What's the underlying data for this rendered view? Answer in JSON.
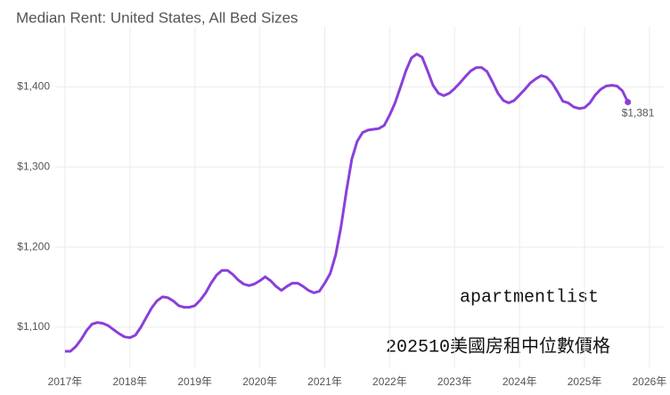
{
  "chart_data": {
    "type": "line",
    "title": "Median Rent: United States, All Bed Sizes",
    "x": [
      2017,
      2017.083,
      2017.167,
      2017.25,
      2017.333,
      2017.417,
      2017.5,
      2017.583,
      2017.667,
      2017.75,
      2017.833,
      2017.917,
      2018,
      2018.083,
      2018.167,
      2018.25,
      2018.333,
      2018.417,
      2018.5,
      2018.583,
      2018.667,
      2018.75,
      2018.833,
      2018.917,
      2019,
      2019.083,
      2019.167,
      2019.25,
      2019.333,
      2019.417,
      2019.5,
      2019.583,
      2019.667,
      2019.75,
      2019.833,
      2019.917,
      2020,
      2020.083,
      2020.167,
      2020.25,
      2020.333,
      2020.417,
      2020.5,
      2020.583,
      2020.667,
      2020.75,
      2020.833,
      2020.917,
      2021,
      2021.083,
      2021.167,
      2021.25,
      2021.333,
      2021.417,
      2021.5,
      2021.583,
      2021.667,
      2021.75,
      2021.833,
      2021.917,
      2022,
      2022.083,
      2022.167,
      2022.25,
      2022.333,
      2022.417,
      2022.5,
      2022.583,
      2022.667,
      2022.75,
      2022.833,
      2022.917,
      2023,
      2023.083,
      2023.167,
      2023.25,
      2023.333,
      2023.417,
      2023.5,
      2023.583,
      2023.667,
      2023.75,
      2023.833,
      2023.917,
      2024,
      2024.083,
      2024.167,
      2024.25,
      2024.333,
      2024.417,
      2024.5,
      2024.583,
      2024.667,
      2024.75,
      2024.833,
      2024.917,
      2025,
      2025.083,
      2025.167,
      2025.25,
      2025.333,
      2025.417,
      2025.5,
      2025.583,
      2025.667
    ],
    "values": [
      1070,
      1070,
      1076,
      1085,
      1096,
      1104,
      1106,
      1105,
      1102,
      1097,
      1092,
      1088,
      1087,
      1090,
      1100,
      1112,
      1124,
      1133,
      1138,
      1137,
      1133,
      1127,
      1125,
      1125,
      1127,
      1134,
      1143,
      1155,
      1165,
      1171,
      1171,
      1166,
      1159,
      1154,
      1152,
      1154,
      1158,
      1163,
      1158,
      1151,
      1146,
      1151,
      1155,
      1155,
      1151,
      1146,
      1143,
      1145,
      1155,
      1167,
      1190,
      1225,
      1270,
      1310,
      1332,
      1343,
      1346,
      1347,
      1348,
      1352,
      1365,
      1380,
      1400,
      1420,
      1436,
      1441,
      1437,
      1420,
      1402,
      1392,
      1389,
      1392,
      1398,
      1405,
      1413,
      1420,
      1424,
      1424,
      1419,
      1406,
      1392,
      1383,
      1380,
      1383,
      1390,
      1397,
      1405,
      1410,
      1414,
      1412,
      1405,
      1394,
      1382,
      1380,
      1375,
      1373,
      1374,
      1380,
      1390,
      1397,
      1401,
      1402,
      1401,
      1395,
      1381
    ],
    "value_labels": [
      null,
      null,
      null,
      null,
      null,
      null,
      null,
      null,
      null,
      null,
      null,
      null,
      null,
      null,
      null,
      null,
      null,
      null,
      null,
      null,
      null,
      null,
      null,
      null,
      null,
      null,
      null,
      null,
      null,
      null,
      null,
      null,
      null,
      null,
      null,
      null,
      null,
      null,
      null,
      null,
      null,
      null,
      null,
      null,
      null,
      null,
      null,
      null,
      null,
      null,
      null,
      null,
      null,
      null,
      null,
      null,
      null,
      null,
      null,
      null,
      null,
      null,
      null,
      null,
      null,
      null,
      null,
      null,
      null,
      null,
      null,
      null,
      null,
      null,
      null,
      null,
      null,
      null,
      null,
      null,
      null,
      null,
      null,
      null,
      null,
      null,
      null,
      null,
      null,
      null,
      null,
      null,
      null,
      null,
      null,
      null,
      null,
      null,
      null,
      null,
      null,
      null,
      null,
      null,
      "$1,381"
    ],
    "color": "#8b3fd9",
    "xlim": [
      2016.85,
      2026.22
    ],
    "xticks": [
      {
        "value": 2017,
        "label": "2017年"
      },
      {
        "value": 2018,
        "label": "2018年"
      },
      {
        "value": 2019,
        "label": "2019年"
      },
      {
        "value": 2020,
        "label": "2020年"
      },
      {
        "value": 2021,
        "label": "2021年"
      },
      {
        "value": 2022,
        "label": "2022年"
      },
      {
        "value": 2023,
        "label": "2023年"
      },
      {
        "value": 2024,
        "label": "2024年"
      },
      {
        "value": 2025,
        "label": "2025年"
      },
      {
        "value": 2026,
        "label": "2026年"
      }
    ],
    "ylim": [
      1050,
      1475
    ],
    "yticks": [
      {
        "value": 1100,
        "label": "$1,100"
      },
      {
        "value": 1200,
        "label": "$1,200"
      },
      {
        "value": 1300,
        "label": "$1,300"
      },
      {
        "value": 1400,
        "label": "$1,400"
      }
    ],
    "grid": true,
    "annotations": [
      "apartmentlist",
      "202510美國房租中位數價格"
    ]
  }
}
